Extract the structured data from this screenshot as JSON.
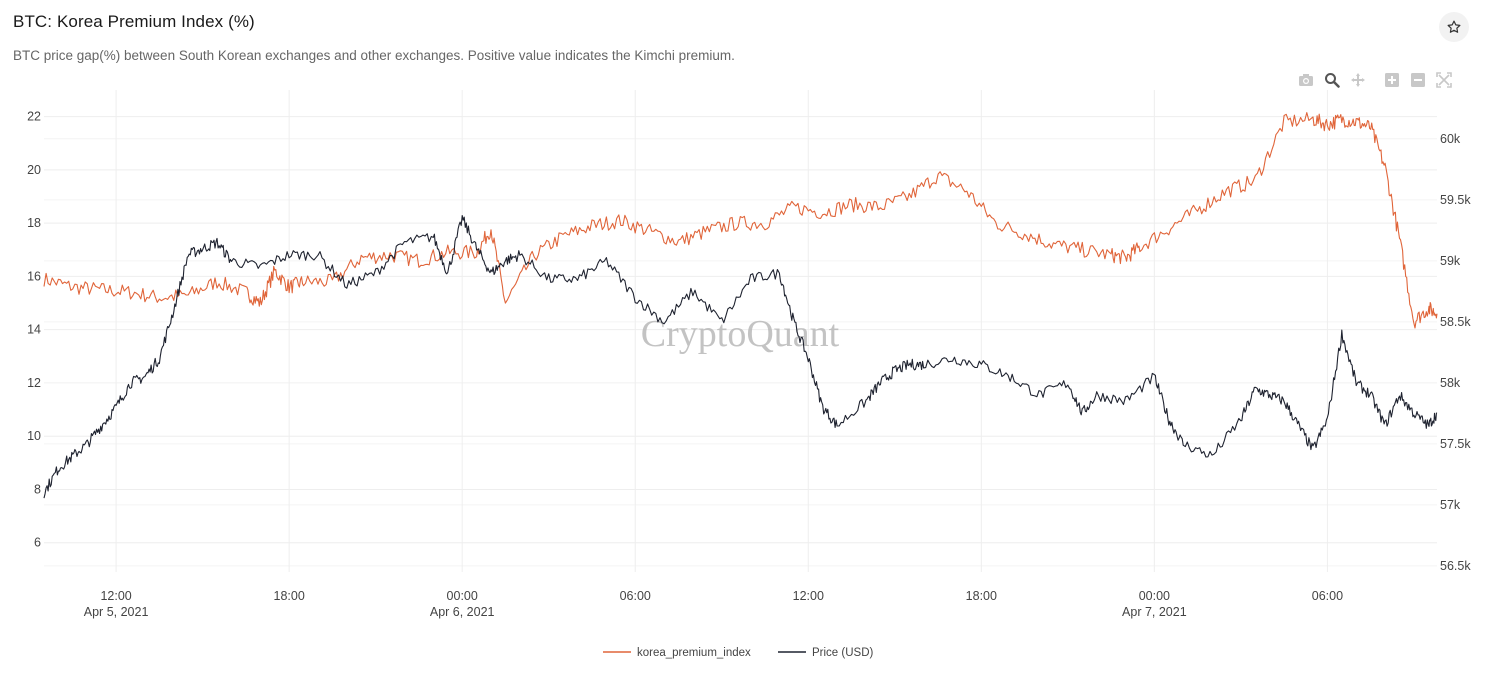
{
  "header": {
    "title": "BTC: Korea Premium Index (%)",
    "subtitle": "BTC price gap(%) between South Korean exchanges and other exchanges. Positive value indicates the Kimchi premium."
  },
  "icons": {
    "favorite": "star-icon",
    "modebar": [
      "camera-icon",
      "zoom-icon",
      "pan-icon",
      "zoom-in-icon",
      "zoom-out-icon",
      "autoscale-icon"
    ]
  },
  "watermark": "CryptoQuant",
  "colors": {
    "premium": "#e0653a",
    "price": "#1f2330",
    "grid": "#eeeeee",
    "watermark": "#b9b9b9"
  },
  "chart_data": {
    "type": "line",
    "title": "BTC: Korea Premium Index (%)",
    "x_range_hours": [
      -2.5,
      45.8
    ],
    "x_ticks": [
      {
        "hour": 0,
        "time": "12:00",
        "date": "Apr 5, 2021"
      },
      {
        "hour": 6,
        "time": "18:00",
        "date": ""
      },
      {
        "hour": 12,
        "time": "00:00",
        "date": "Apr 6, 2021"
      },
      {
        "hour": 18,
        "time": "06:00",
        "date": ""
      },
      {
        "hour": 24,
        "time": "12:00",
        "date": ""
      },
      {
        "hour": 30,
        "time": "18:00",
        "date": ""
      },
      {
        "hour": 36,
        "time": "00:00",
        "date": "Apr 7, 2021"
      },
      {
        "hour": 42,
        "time": "06:00",
        "date": ""
      }
    ],
    "y_left": {
      "range": [
        4.9,
        23.0
      ],
      "ticks": [
        "6",
        "8",
        "10",
        "12",
        "14",
        "16",
        "18",
        "20",
        "22"
      ]
    },
    "y_right": {
      "range": [
        56450,
        60400
      ],
      "ticks": [
        {
          "value": 56500,
          "label": "56.5k"
        },
        {
          "value": 57000,
          "label": "57k"
        },
        {
          "value": 57500,
          "label": "57.5k"
        },
        {
          "value": 58000,
          "label": "58k"
        },
        {
          "value": 58500,
          "label": "58.5k"
        },
        {
          "value": 59000,
          "label": "59k"
        },
        {
          "value": 59500,
          "label": "59.5k"
        },
        {
          "value": 60000,
          "label": "60k"
        }
      ]
    },
    "series": [
      {
        "name": "korea_premium_index",
        "axis": "left",
        "x": [
          -2.5,
          -1.5,
          -0.5,
          0.5,
          1.5,
          2.5,
          3.5,
          4.5,
          5.0,
          5.5,
          6.0,
          6.5,
          7.5,
          8.5,
          9.5,
          10.5,
          11.5,
          12.5,
          13.0,
          13.5,
          14.5,
          15.5,
          16.5,
          17.5,
          18.5,
          19.5,
          20.5,
          21.5,
          22.5,
          23.5,
          24.5,
          25.5,
          26.5,
          27.5,
          28.5,
          29.5,
          30.5,
          31.5,
          32.5,
          33.5,
          34.5,
          35.0,
          35.5,
          36.5,
          37.5,
          38.5,
          39.5,
          40.5,
          41.5,
          42.0,
          42.5,
          43.0,
          43.5,
          44.0,
          44.5,
          45.0,
          45.5,
          45.8
        ],
        "y": [
          15.9,
          15.6,
          15.5,
          15.4,
          15.2,
          15.3,
          15.8,
          15.4,
          15.0,
          16.2,
          15.6,
          15.8,
          15.8,
          16.7,
          16.8,
          16.6,
          16.9,
          16.9,
          17.8,
          15.0,
          16.8,
          17.5,
          17.9,
          18.1,
          17.7,
          17.3,
          17.7,
          18.0,
          18.0,
          18.6,
          18.4,
          18.7,
          18.6,
          19.0,
          19.8,
          19.2,
          18.0,
          17.6,
          17.2,
          17.0,
          16.8,
          16.7,
          17.1,
          17.8,
          18.5,
          19.2,
          19.6,
          21.8,
          21.9,
          21.7,
          21.9,
          21.8,
          21.6,
          20.1,
          17.4,
          14.3,
          14.8,
          14.6
        ]
      },
      {
        "name": "Price (USD)",
        "axis": "right",
        "x": [
          -2.5,
          -2.0,
          -1.5,
          -1.0,
          -0.5,
          0.0,
          0.5,
          1.0,
          1.5,
          2.0,
          2.5,
          3.0,
          3.5,
          4.0,
          5.0,
          6.0,
          7.0,
          8.0,
          9.0,
          10.0,
          11.0,
          11.5,
          12.0,
          12.5,
          13.0,
          13.5,
          14.0,
          15.0,
          16.0,
          17.0,
          18.0,
          19.0,
          20.0,
          21.0,
          22.0,
          23.0,
          23.5,
          24.0,
          24.5,
          25.0,
          26.0,
          26.5,
          27.0,
          27.5,
          28.0,
          29.0,
          30.0,
          31.0,
          32.0,
          33.0,
          33.5,
          34.0,
          35.0,
          36.0,
          36.5,
          37.0,
          38.0,
          39.0,
          39.5,
          40.0,
          40.5,
          41.0,
          41.5,
          42.0,
          42.5,
          43.0,
          43.5,
          44.0,
          44.5,
          45.0,
          45.5,
          45.8
        ],
        "y": [
          57100,
          57300,
          57400,
          57500,
          57650,
          57800,
          58000,
          58050,
          58200,
          58600,
          59050,
          59100,
          59150,
          59000,
          58950,
          59050,
          59050,
          58800,
          58900,
          59150,
          59200,
          58900,
          59350,
          59100,
          58900,
          59000,
          59050,
          58850,
          58850,
          59000,
          58700,
          58500,
          58750,
          58500,
          58850,
          58900,
          58500,
          58200,
          57800,
          57650,
          57850,
          58000,
          58100,
          58150,
          58150,
          58200,
          58150,
          58050,
          57900,
          58000,
          57750,
          57900,
          57850,
          58050,
          57700,
          57500,
          57400,
          57700,
          57950,
          57900,
          57850,
          57650,
          57450,
          57700,
          58400,
          58000,
          57900,
          57650,
          57900,
          57750,
          57650,
          57750
        ]
      }
    ],
    "legend": [
      {
        "label": "korea_premium_index"
      },
      {
        "label": "Price (USD)"
      }
    ]
  }
}
